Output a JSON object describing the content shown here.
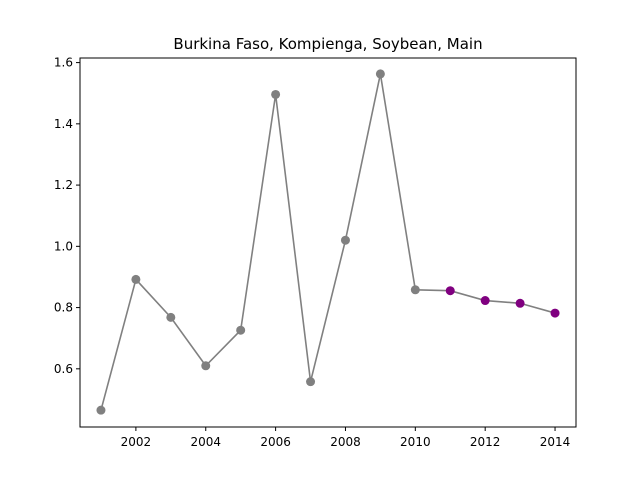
{
  "chart_data": {
    "type": "line",
    "title": "Burkina Faso, Kompienga, Soybean, Main",
    "xlabel": "",
    "ylabel": "",
    "xlim": [
      2000.4,
      2014.6
    ],
    "ylim": [
      0.41,
      1.615
    ],
    "xticks": [
      2002,
      2004,
      2006,
      2008,
      2010,
      2012,
      2014
    ],
    "yticks": [
      0.6,
      0.8,
      1.0,
      1.2,
      1.4,
      1.6
    ],
    "xtick_labels": [
      "2002",
      "2004",
      "2006",
      "2008",
      "2010",
      "2012",
      "2014"
    ],
    "ytick_labels": [
      "0.6",
      "0.8",
      "1.0",
      "1.2",
      "1.4",
      "1.6"
    ],
    "grid": false,
    "line_color": "#808080",
    "series": [
      {
        "color": "#808080",
        "x": [
          2001,
          2002,
          2003,
          2004,
          2005,
          2006,
          2007,
          2008,
          2009,
          2010
        ],
        "y": [
          0.465,
          0.892,
          0.768,
          0.61,
          0.726,
          1.496,
          0.558,
          1.02,
          1.563,
          0.858
        ]
      },
      {
        "color": "#800080",
        "x": [
          2011,
          2012,
          2013,
          2014
        ],
        "y": [
          0.855,
          0.823,
          0.814,
          0.782
        ]
      }
    ]
  }
}
